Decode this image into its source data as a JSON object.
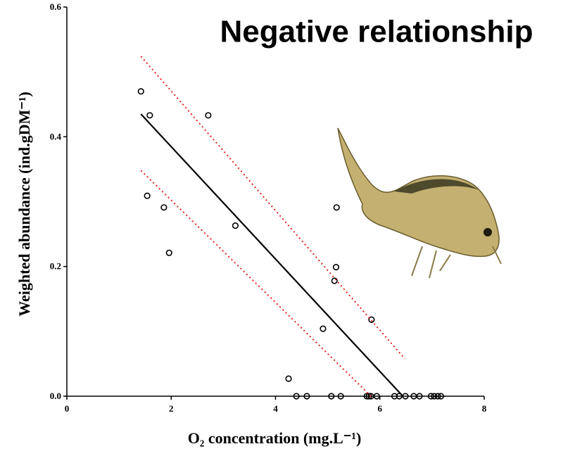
{
  "chart_data": {
    "type": "scatter",
    "title": "Negative relationship",
    "xlabel": "O₂ concentration (mg.L⁻¹)",
    "ylabel": "Weighted abundance (ind.gDM⁻¹)",
    "xlim": [
      0,
      8
    ],
    "ylim": [
      0,
      0.6
    ],
    "xticks": [
      0,
      2,
      4,
      6,
      8
    ],
    "yticks": [
      {
        "value": 0,
        "label": "0.0"
      },
      0.2,
      0.4,
      0.6
    ],
    "series": [
      {
        "style": "points",
        "color": "#000000",
        "x": [
          1.42,
          1.59,
          2.71,
          1.54,
          1.86,
          1.96,
          3.23,
          5.17,
          5.16,
          5.13,
          4.91,
          5.84,
          4.25,
          4.4,
          4.6,
          5.07,
          5.25,
          5.75,
          5.79,
          5.83,
          5.94,
          6.28,
          6.37,
          6.49,
          6.65,
          6.76,
          6.98,
          7.04,
          7.11,
          7.17
        ],
        "values": [
          0.47,
          0.433,
          0.433,
          0.309,
          0.291,
          0.221,
          0.263,
          0.291,
          0.199,
          0.178,
          0.104,
          0.118,
          0.027,
          0,
          0,
          0,
          0,
          0,
          0,
          0,
          0,
          0,
          0,
          0,
          0,
          0,
          0,
          0,
          0,
          0
        ]
      },
      {
        "style": "solid",
        "color": "#000000",
        "x": [
          1.42,
          6.44
        ],
        "values": [
          0.435,
          0
        ]
      },
      {
        "style": "dotted",
        "color": "#e8201c",
        "x": [
          1.42,
          6.48
        ],
        "values": [
          0.524,
          0.0575
        ]
      },
      {
        "style": "dotted",
        "color": "#e8201c",
        "x": [
          1.42,
          5.83
        ],
        "values": [
          0.348,
          0
        ]
      }
    ]
  }
}
